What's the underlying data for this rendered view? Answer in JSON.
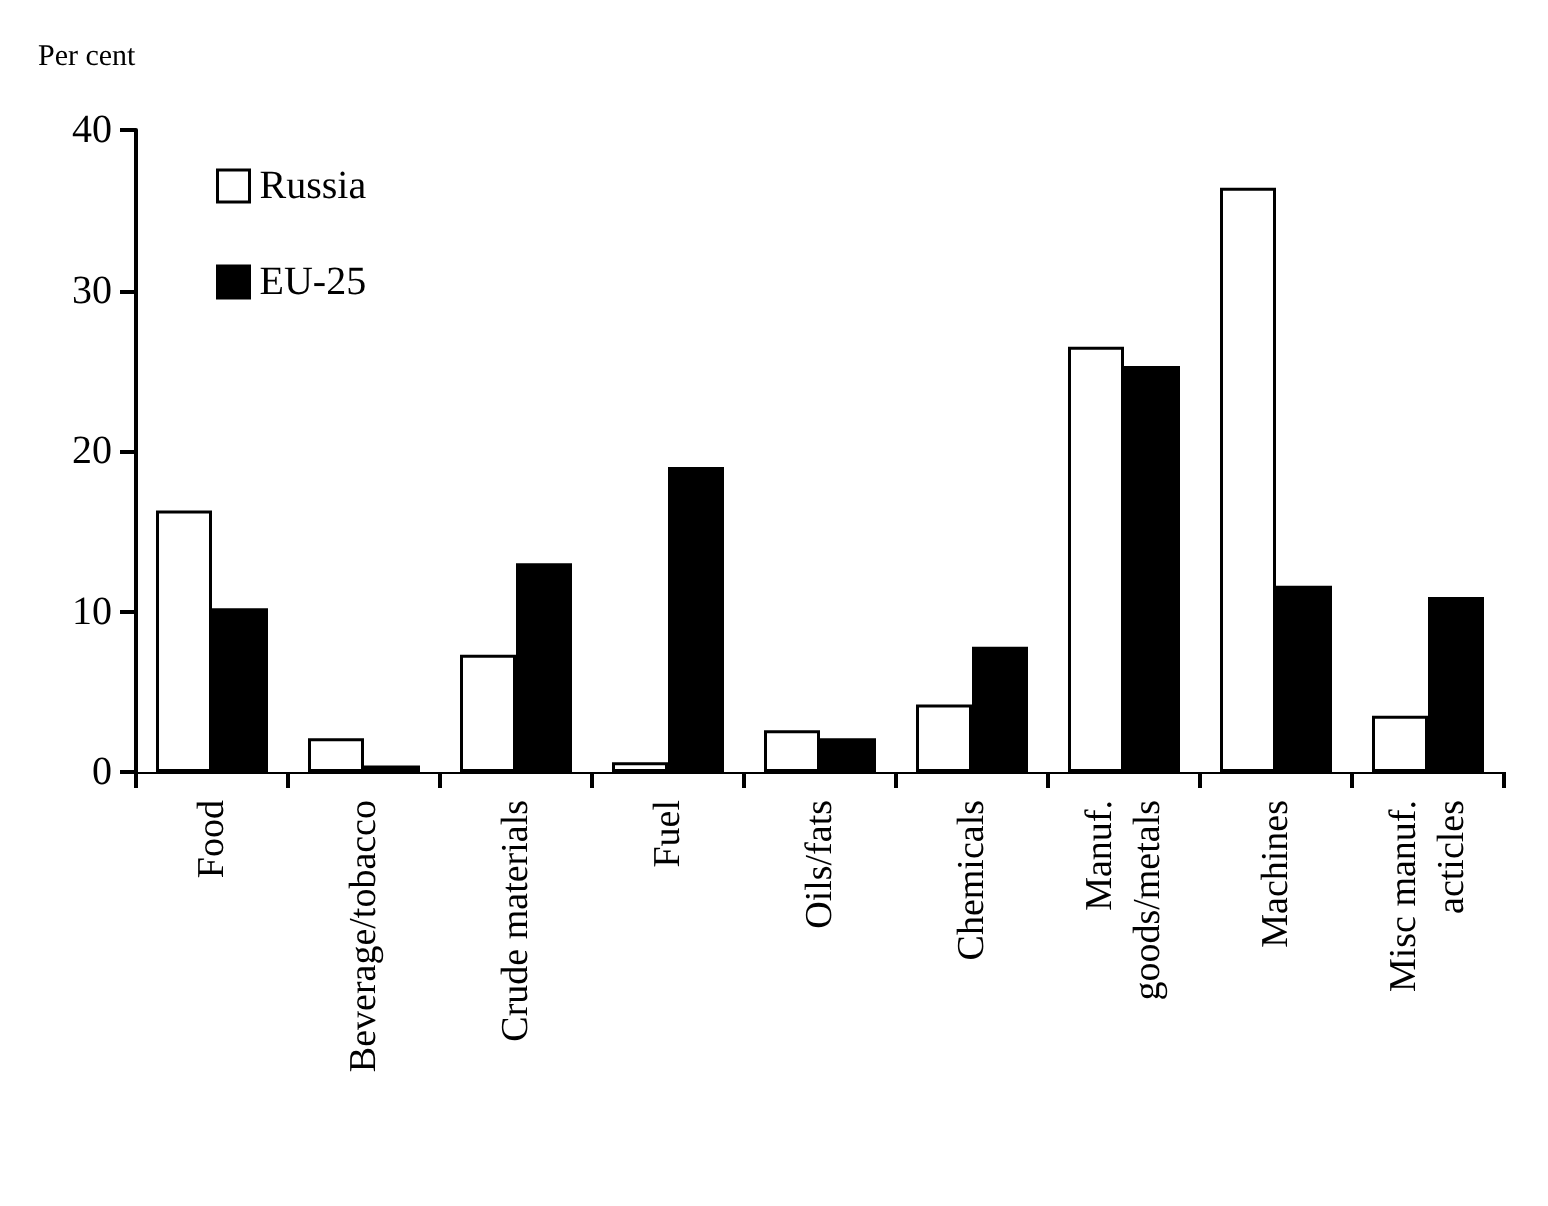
{
  "chart_data": {
    "type": "bar",
    "ylabel": "Per cent",
    "categories": [
      "Food",
      "Beverage/tobacco",
      "Crude materials",
      "Fuel",
      "Oils/fats",
      "Chemicals",
      "Manuf.\ngoods/metals",
      "Machines",
      "Misc manuf.\nacticles"
    ],
    "series": [
      {
        "name": "Russia",
        "color": "#ffffff",
        "values": [
          16.3,
          2.1,
          7.3,
          0.6,
          2.6,
          4.2,
          26.5,
          36.4,
          3.5
        ]
      },
      {
        "name": "EU-25",
        "color": "#000000",
        "values": [
          10.2,
          0.4,
          13.0,
          19.0,
          2.1,
          7.8,
          25.3,
          11.6,
          10.9
        ]
      }
    ],
    "ylim": [
      0,
      40
    ],
    "yticks": [
      0,
      10,
      20,
      30,
      40
    ],
    "grid": false,
    "legend": "top left"
  }
}
